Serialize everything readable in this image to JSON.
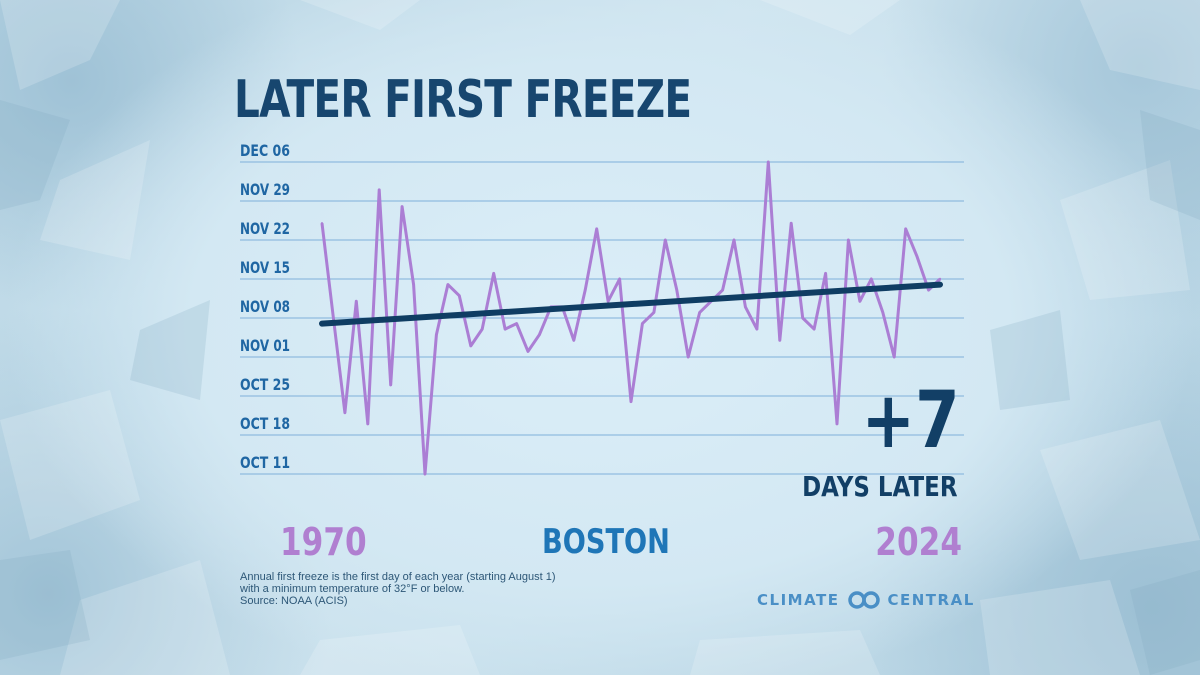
{
  "title": "LATER FIRST FREEZE",
  "city": "BOSTON",
  "start_year": "1970",
  "end_year": "2024",
  "change": {
    "value": "+7",
    "label": "DAYS LATER"
  },
  "footnote": {
    "line1": "Annual first freeze is the first day of each year (starting August 1)",
    "line2": "with a minimum temperature of 32°F or below.",
    "line3": "Source: NOAA (ACIS)"
  },
  "brand": {
    "left": "CLIMATE",
    "right": "CENTRAL"
  },
  "colors": {
    "title": "#17466f",
    "series": "#ab7ed4",
    "trend": "#0f3d63",
    "grid": "#7fb0da",
    "tick_text": "#1f66a3",
    "city": "#1f76b7",
    "year": "#b07fd0",
    "brand": "#4a8fc6"
  },
  "chart_data": {
    "type": "line",
    "title": "LATER FIRST FREEZE",
    "xlabel": "",
    "ylabel": "",
    "x_start": 1970,
    "x_end": 2024,
    "y_ticks": [
      "Dec 06",
      "Nov 29",
      "Nov 22",
      "Nov 15",
      "Nov 08",
      "Nov 01",
      "Oct 25",
      "Oct 18",
      "Oct 11"
    ],
    "ylim": [
      "Oct 11",
      "Dec 06"
    ],
    "grid": true,
    "series": [
      {
        "values": [
          "Nov 25",
          "Nov 08",
          "Oct 22",
          "Nov 11",
          "Oct 20",
          "Dec 01",
          "Oct 27",
          "Nov 28",
          "Nov 14",
          "Oct 11",
          "Nov 05",
          "Nov 14",
          "Nov 12",
          "Nov 03",
          "Nov 06",
          "Nov 16",
          "Nov 06",
          "Nov 07",
          "Nov 02",
          "Nov 05",
          "Nov 10",
          "Nov 10",
          "Nov 04",
          "Nov 13",
          "Nov 24",
          "Nov 11",
          "Nov 15",
          "Oct 24",
          "Nov 07",
          "Nov 09",
          "Nov 22",
          "Nov 13",
          "Nov 01",
          "Nov 09",
          "Nov 11",
          "Nov 13",
          "Nov 22",
          "Nov 10",
          "Nov 06",
          "Dec 06",
          "Nov 04",
          "Nov 25",
          "Nov 08",
          "Nov 06",
          "Nov 16",
          "Oct 20",
          "Nov 22",
          "Nov 11",
          "Nov 15",
          "Nov 09",
          "Nov 01",
          "Nov 24",
          "Nov 19",
          "Nov 13",
          "Nov 15"
        ]
      }
    ],
    "trend": {
      "start": "Nov 07",
      "end": "Nov 14"
    }
  }
}
